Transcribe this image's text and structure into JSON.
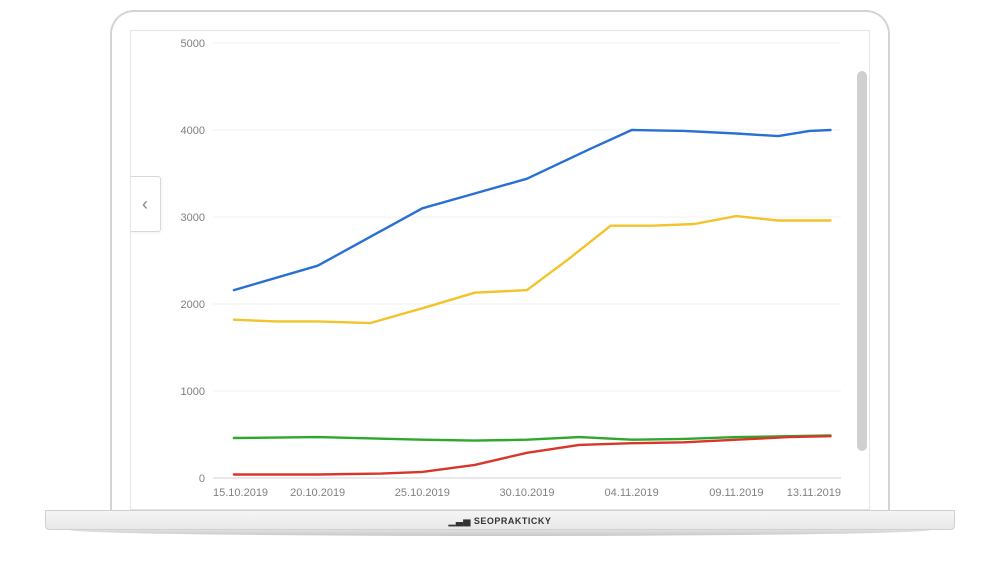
{
  "brand": "SEOPRAKTICKY",
  "nav": {
    "prev_symbol": "‹"
  },
  "chart": {
    "type": "line",
    "background_color": "#ffffff",
    "grid_color": "#f0f0f0",
    "axis_text_color": "#808080",
    "axis_fontsize": 11,
    "line_width": 2.4,
    "ylim": [
      0,
      5000
    ],
    "ytick_step": 1000,
    "yticks": [
      0,
      1000,
      2000,
      3000,
      4000,
      5000
    ],
    "x_categories": [
      "15.10.2019",
      "20.10.2019",
      "25.10.2019",
      "30.10.2019",
      "04.11.2019",
      "09.11.2019",
      "13.11.2019"
    ],
    "x_first_index": 0,
    "x_last_index": 6,
    "series": [
      {
        "name": "blue",
        "color": "#2a6fd6",
        "points": [
          [
            0.2,
            2160
          ],
          [
            1.0,
            2440
          ],
          [
            2.0,
            3100
          ],
          [
            2.5,
            3270
          ],
          [
            3.0,
            3440
          ],
          [
            3.6,
            3780
          ],
          [
            4.0,
            4000
          ],
          [
            4.5,
            3990
          ],
          [
            5.0,
            3960
          ],
          [
            5.4,
            3930
          ],
          [
            5.7,
            3990
          ],
          [
            5.9,
            4000
          ]
        ]
      },
      {
        "name": "yellow",
        "color": "#f2c32b",
        "points": [
          [
            0.2,
            1820
          ],
          [
            0.6,
            1800
          ],
          [
            1.0,
            1800
          ],
          [
            1.5,
            1780
          ],
          [
            2.0,
            1950
          ],
          [
            2.5,
            2130
          ],
          [
            3.0,
            2160
          ],
          [
            3.4,
            2520
          ],
          [
            3.8,
            2900
          ],
          [
            4.2,
            2900
          ],
          [
            4.6,
            2920
          ],
          [
            5.0,
            3010
          ],
          [
            5.4,
            2960
          ],
          [
            5.7,
            2960
          ],
          [
            5.9,
            2960
          ]
        ]
      },
      {
        "name": "green",
        "color": "#2da82d",
        "points": [
          [
            0.2,
            460
          ],
          [
            1.0,
            470
          ],
          [
            2.0,
            440
          ],
          [
            2.5,
            430
          ],
          [
            3.0,
            440
          ],
          [
            3.5,
            470
          ],
          [
            4.0,
            440
          ],
          [
            4.5,
            450
          ],
          [
            5.0,
            470
          ],
          [
            5.5,
            480
          ],
          [
            5.9,
            490
          ]
        ]
      },
      {
        "name": "red",
        "color": "#d9362b",
        "points": [
          [
            0.2,
            40
          ],
          [
            1.0,
            40
          ],
          [
            1.6,
            50
          ],
          [
            2.0,
            70
          ],
          [
            2.5,
            150
          ],
          [
            3.0,
            290
          ],
          [
            3.5,
            380
          ],
          [
            4.0,
            400
          ],
          [
            4.5,
            410
          ],
          [
            5.0,
            440
          ],
          [
            5.5,
            470
          ],
          [
            5.9,
            480
          ]
        ]
      }
    ]
  }
}
